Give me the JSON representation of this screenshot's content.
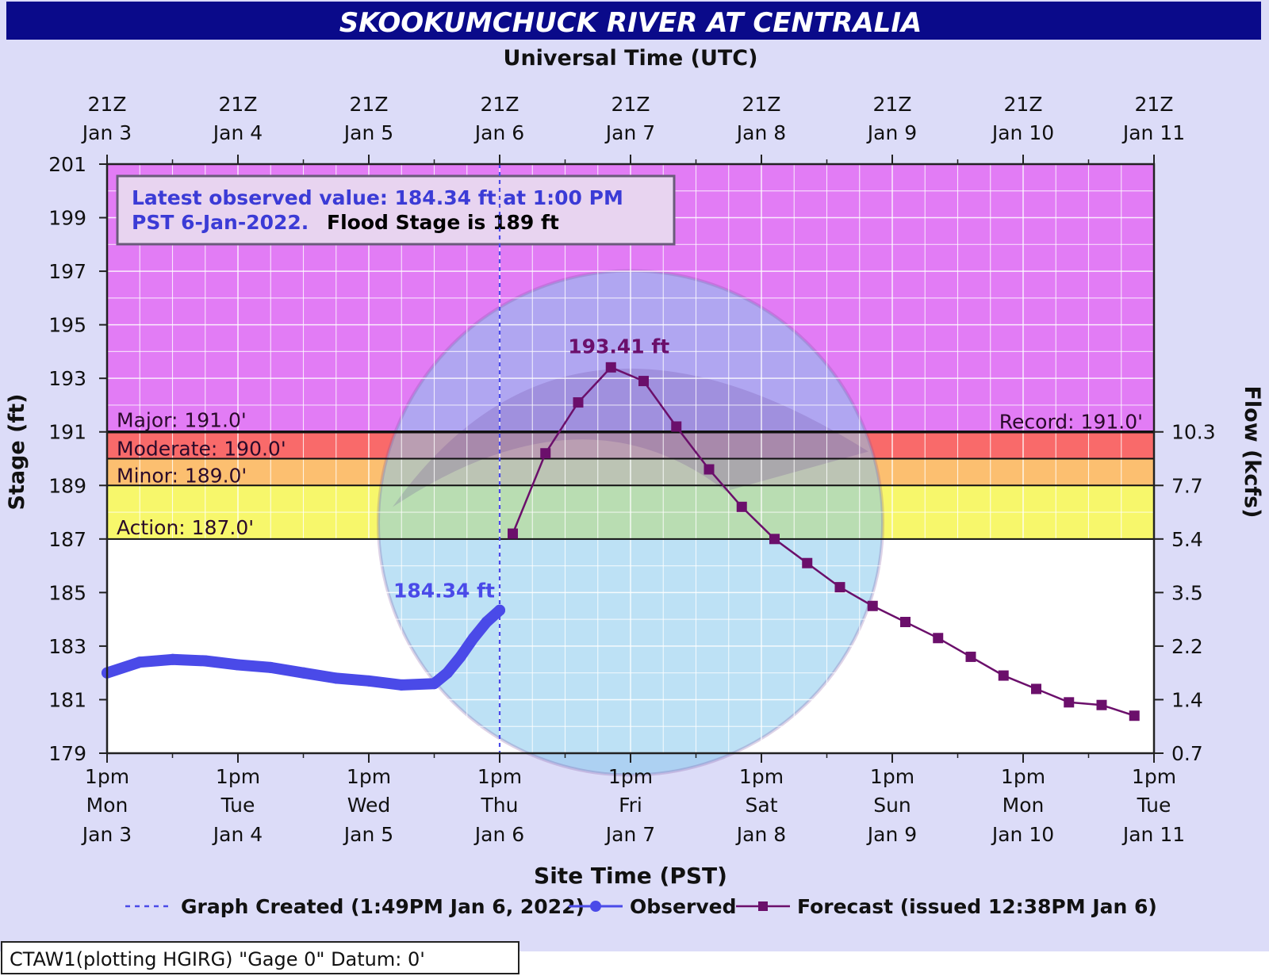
{
  "title": "SKOOKUMCHUCK RIVER AT CENTRALIA",
  "colors": {
    "page_bg": "#dcdcf8",
    "title_bar": "#0a0a8a",
    "title_text": "#ffffff",
    "major": "#e27cf5",
    "moderate": "#f96a6a",
    "minor": "#fcbf70",
    "action": "#f7f76b",
    "grid": "#ffffff",
    "observed": "#4a4ae8",
    "forecast": "#6b0f6b",
    "info_blue": "#3b3bd6",
    "watermark": "#86c9ec"
  },
  "chart_data": {
    "type": "line",
    "title": "SKOOKUMCHUCK RIVER AT CENTRALIA",
    "top_axis_label": "Universal Time (UTC)",
    "top_ticks": [
      {
        "hour": "21Z",
        "date": "Jan  3"
      },
      {
        "hour": "21Z",
        "date": "Jan  4"
      },
      {
        "hour": "21Z",
        "date": "Jan  5"
      },
      {
        "hour": "21Z",
        "date": "Jan  6"
      },
      {
        "hour": "21Z",
        "date": "Jan  7"
      },
      {
        "hour": "21Z",
        "date": "Jan  8"
      },
      {
        "hour": "21Z",
        "date": "Jan  9"
      },
      {
        "hour": "21Z",
        "date": "Jan 10"
      },
      {
        "hour": "21Z",
        "date": "Jan 11"
      }
    ],
    "xlabel": "Site Time (PST)",
    "bottom_ticks": [
      {
        "time": "1pm",
        "day": "Mon",
        "date": "Jan 3"
      },
      {
        "time": "1pm",
        "day": "Tue",
        "date": "Jan 4"
      },
      {
        "time": "1pm",
        "day": "Wed",
        "date": "Jan 5"
      },
      {
        "time": "1pm",
        "day": "Thu",
        "date": "Jan 6"
      },
      {
        "time": "1pm",
        "day": "Fri",
        "date": "Jan 7"
      },
      {
        "time": "1pm",
        "day": "Sat",
        "date": "Jan 8"
      },
      {
        "time": "1pm",
        "day": "Sun",
        "date": "Jan 9"
      },
      {
        "time": "1pm",
        "day": "Mon",
        "date": "Jan 10"
      },
      {
        "time": "1pm",
        "day": "Tue",
        "date": "Jan 11"
      }
    ],
    "x_unit": "days after 1pm PST Mon Jan 3",
    "xlim": [
      0,
      8
    ],
    "ylabel": "Stage (ft)",
    "ylim": [
      179,
      201
    ],
    "y_ticks": [
      201,
      199,
      197,
      195,
      193,
      191,
      189,
      187,
      185,
      183,
      181,
      179
    ],
    "y2label": "Flow (kcfs)",
    "y2_ticks": [
      {
        "stage": 191,
        "label": "10.3"
      },
      {
        "stage": 189,
        "label": "7.7"
      },
      {
        "stage": 187,
        "label": "5.4"
      },
      {
        "stage": 185,
        "label": "3.5"
      },
      {
        "stage": 183,
        "label": "2.2"
      },
      {
        "stage": 181,
        "label": "1.4"
      },
      {
        "stage": 179,
        "label": "0.7"
      }
    ],
    "grid": true,
    "flood_categories": [
      {
        "name": "major",
        "label": "Major: 191.0'",
        "from": 191,
        "to": 201
      },
      {
        "name": "moderate",
        "label": "Moderate: 190.0'",
        "from": 190,
        "to": 191
      },
      {
        "name": "minor",
        "label": "Minor: 189.0'",
        "from": 189,
        "to": 190
      },
      {
        "name": "action",
        "label": "Action: 187.0'",
        "from": 187,
        "to": 189
      }
    ],
    "record_label": "Record: 191.0'",
    "graph_created_x": 3.0,
    "series": [
      {
        "name": "Observed",
        "x": [
          0.0,
          0.25,
          0.5,
          0.75,
          1.0,
          1.25,
          1.5,
          1.75,
          2.0,
          2.25,
          2.5,
          2.6,
          2.7,
          2.8,
          2.9,
          3.0
        ],
        "y": [
          182.0,
          182.4,
          182.5,
          182.45,
          182.3,
          182.2,
          182.0,
          181.8,
          181.7,
          181.55,
          181.6,
          182.0,
          182.6,
          183.3,
          183.9,
          184.34
        ]
      },
      {
        "name": "Forecast (issued 12:38PM Jan 6)",
        "x": [
          3.1,
          3.35,
          3.6,
          3.85,
          4.1,
          4.35,
          4.6,
          4.85,
          5.1,
          5.35,
          5.6,
          5.85,
          6.1,
          6.35,
          6.6,
          6.85,
          7.1,
          7.35,
          7.6,
          7.85
        ],
        "y": [
          187.2,
          190.2,
          192.1,
          193.41,
          192.9,
          191.2,
          189.6,
          188.2,
          187.0,
          186.1,
          185.2,
          184.5,
          183.9,
          183.3,
          182.6,
          181.9,
          181.4,
          180.9,
          180.8,
          180.4
        ]
      }
    ],
    "annotations": {
      "observed_label": "184.34 ft",
      "forecast_peak_label": "193.41 ft"
    }
  },
  "info_box": {
    "line1": "Latest observed value: 184.34 ft at 1:00 PM",
    "line2_blue": "PST 6-Jan-2022.",
    "line2_black": "Flood Stage is 189 ft"
  },
  "legend": {
    "graph_created": "Graph Created (1:49PM Jan 6, 2022)",
    "observed": "Observed",
    "forecast": "Forecast (issued 12:38PM Jan 6)"
  },
  "footer": "CTAW1(plotting HGIRG) \"Gage 0\" Datum: 0'"
}
